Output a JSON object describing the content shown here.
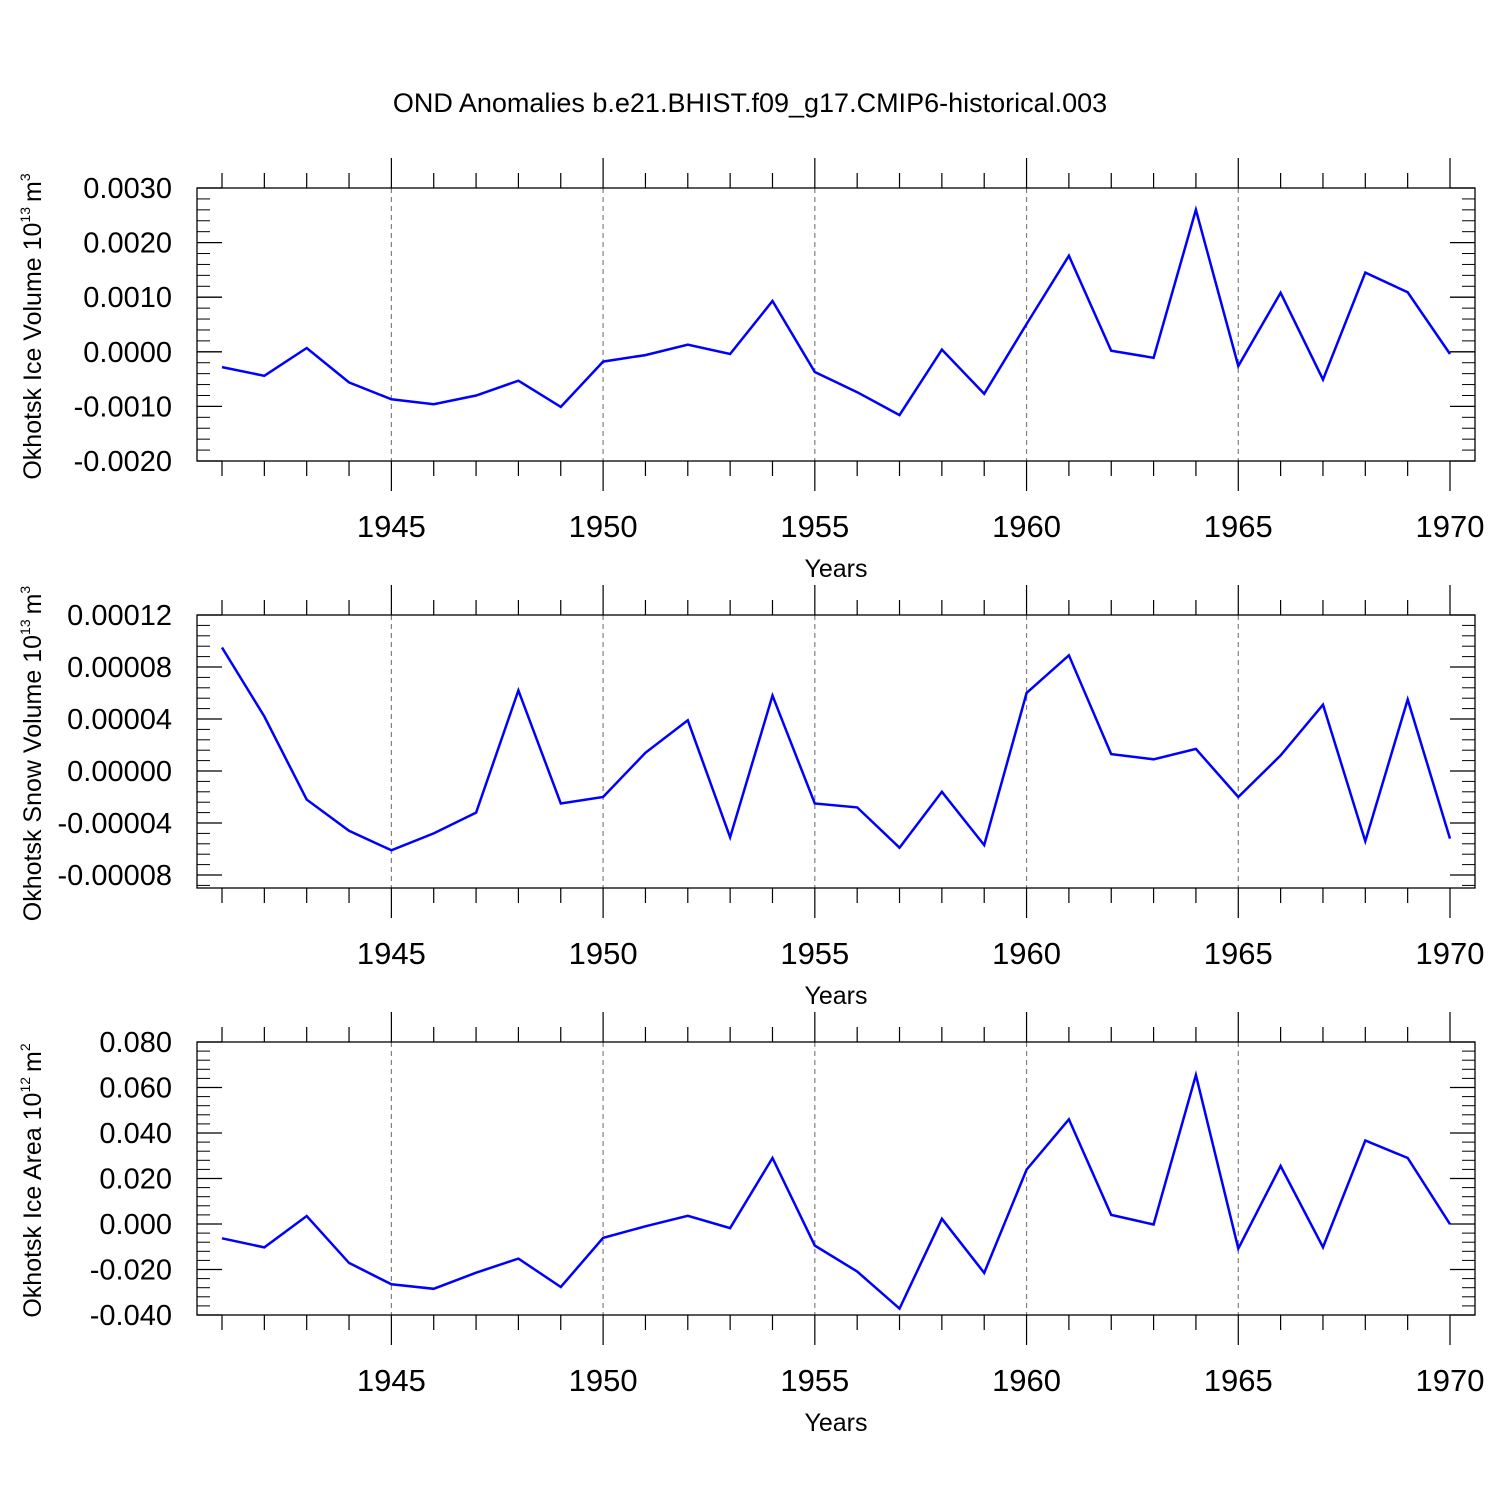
{
  "title": "OND Anomalies b.e21.BHIST.f09_g17.CMIP6-historical.003",
  "colors": {
    "line": "#0000ff",
    "axis": "#000000",
    "grid": "#808080"
  },
  "chart_data": [
    {
      "type": "line",
      "ylabel": "Okhotsk Ice Volume 10",
      "ylabel_exp": "13",
      "ylabel_unit": "m",
      "ylabel_unit_exp": "3",
      "xlabel": "Years",
      "xlim": [
        1941,
        1970
      ],
      "ylim": [
        -0.002,
        0.003
      ],
      "yticks": [
        -0.002,
        -0.001,
        0.0,
        0.001,
        0.002,
        0.003
      ],
      "ytick_labels": [
        "-0.0020",
        "-0.0010",
        "0.0000",
        "0.0010",
        "0.0020",
        "0.0030"
      ],
      "xticks": [
        1945,
        1950,
        1955,
        1960,
        1965,
        1970
      ],
      "xtick_labels": [
        "1945",
        "1950",
        "1955",
        "1960",
        "1965",
        "1970"
      ],
      "grid_x": [
        1945,
        1950,
        1955,
        1960,
        1965
      ],
      "x": [
        1941,
        1942,
        1943,
        1944,
        1945,
        1946,
        1947,
        1948,
        1949,
        1950,
        1951,
        1952,
        1953,
        1954,
        1955,
        1956,
        1957,
        1958,
        1959,
        1960,
        1961,
        1962,
        1963,
        1964,
        1965,
        1966,
        1967,
        1968,
        1969,
        1970
      ],
      "series": [
        {
          "name": "Okhotsk Ice Volume",
          "values": [
            -0.00028,
            -0.00044,
            7e-05,
            -0.00056,
            -0.00087,
            -0.00096,
            -0.0008,
            -0.00053,
            -0.00101,
            -0.00018,
            -6e-05,
            0.00013,
            -4e-05,
            0.00093,
            -0.00037,
            -0.00074,
            -0.00116,
            4e-05,
            -0.00077,
            0.00051,
            0.00176,
            2e-05,
            -0.00011,
            0.0026,
            -0.00026,
            0.00108,
            -0.00051,
            0.00145,
            0.00109,
            -4e-05
          ]
        }
      ]
    },
    {
      "type": "line",
      "ylabel": "Okhotsk Snow Volume 10",
      "ylabel_exp": "13",
      "ylabel_unit": "m",
      "ylabel_unit_exp": "3",
      "xlabel": "Years",
      "xlim": [
        1941,
        1970
      ],
      "ylim": [
        -9e-05,
        0.00012
      ],
      "yticks": [
        -8e-05,
        -4e-05,
        0.0,
        4e-05,
        8e-05,
        0.00012
      ],
      "ytick_labels": [
        "-0.00008",
        "-0.00004",
        "0.00000",
        "0.00004",
        "0.00008",
        "0.00012"
      ],
      "xticks": [
        1945,
        1950,
        1955,
        1960,
        1965,
        1970
      ],
      "xtick_labels": [
        "1945",
        "1950",
        "1955",
        "1960",
        "1965",
        "1970"
      ],
      "grid_x": [
        1945,
        1950,
        1955,
        1960,
        1965
      ],
      "x": [
        1941,
        1942,
        1943,
        1944,
        1945,
        1946,
        1947,
        1948,
        1949,
        1950,
        1951,
        1952,
        1953,
        1954,
        1955,
        1956,
        1957,
        1958,
        1959,
        1960,
        1961,
        1962,
        1963,
        1964,
        1965,
        1966,
        1967,
        1968,
        1969,
        1970
      ],
      "series": [
        {
          "name": "Okhotsk Snow Volume",
          "values": [
            9.5e-05,
            4.2e-05,
            -2.2e-05,
            -4.6e-05,
            -6.1e-05,
            -4.8e-05,
            -3.2e-05,
            6.2e-05,
            -2.5e-05,
            -2e-05,
            1.4e-05,
            3.9e-05,
            -5.1e-05,
            5.8e-05,
            -2.5e-05,
            -2.8e-05,
            -5.9e-05,
            -1.6e-05,
            -5.7e-05,
            6e-05,
            8.9e-05,
            1.3e-05,
            9e-06,
            1.7e-05,
            -2e-05,
            1.2e-05,
            5.1e-05,
            -5.4e-05,
            5.5e-05,
            -5.2e-05
          ]
        }
      ]
    },
    {
      "type": "line",
      "ylabel": "Okhotsk Ice Area 10",
      "ylabel_exp": "12",
      "ylabel_unit": "m",
      "ylabel_unit_exp": "2",
      "xlabel": "Years",
      "xlim": [
        1941,
        1970
      ],
      "ylim": [
        -0.04,
        0.08
      ],
      "yticks": [
        -0.04,
        -0.02,
        0.0,
        0.02,
        0.04,
        0.06,
        0.08
      ],
      "ytick_labels": [
        "-0.040",
        "-0.020",
        "0.000",
        "0.020",
        "0.040",
        "0.060",
        "0.080"
      ],
      "xticks": [
        1945,
        1950,
        1955,
        1960,
        1965,
        1970
      ],
      "xtick_labels": [
        "1945",
        "1950",
        "1955",
        "1960",
        "1965",
        "1970"
      ],
      "grid_x": [
        1945,
        1950,
        1955,
        1960,
        1965
      ],
      "x": [
        1941,
        1942,
        1943,
        1944,
        1945,
        1946,
        1947,
        1948,
        1949,
        1950,
        1951,
        1952,
        1953,
        1954,
        1955,
        1956,
        1957,
        1958,
        1959,
        1960,
        1961,
        1962,
        1963,
        1964,
        1965,
        1966,
        1967,
        1968,
        1969,
        1970
      ],
      "series": [
        {
          "name": "Okhotsk Ice Area",
          "values": [
            -0.0063,
            -0.0103,
            0.0035,
            -0.0171,
            -0.0265,
            -0.0285,
            -0.0214,
            -0.0152,
            -0.0277,
            -0.0061,
            -0.001,
            0.0036,
            -0.0018,
            0.029,
            -0.0095,
            -0.0209,
            -0.0372,
            0.0023,
            -0.0215,
            0.0239,
            0.046,
            0.004,
            -0.0002,
            0.0655,
            -0.0108,
            0.0255,
            -0.0102,
            0.0367,
            0.029,
            -0.0001
          ]
        }
      ]
    }
  ]
}
